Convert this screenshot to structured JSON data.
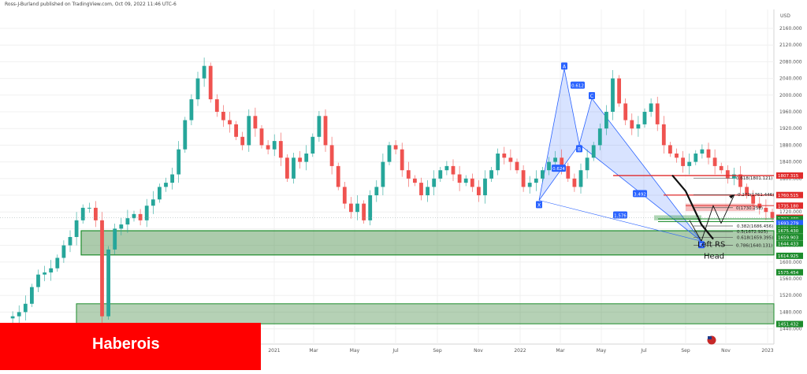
{
  "header": {
    "publisher_text": "Ross-J-Burland published on TradingView.com, Oct 09, 2022 11:46 UTC-6"
  },
  "watermark": {
    "label": "Haberois",
    "color": "#ff0000"
  },
  "chart_data": {
    "type": "candlestick",
    "currency": "USD",
    "y_range": [
      1425,
      2185
    ],
    "y_ticks": [
      2160,
      2120,
      2080,
      2040,
      2000,
      1960,
      1920,
      1880,
      1840,
      1800,
      1760,
      1720,
      1680,
      1640,
      1600,
      1560,
      1520,
      1480,
      1440
    ],
    "x_ticks": [
      "2021",
      "Mar",
      "May",
      "Jul",
      "Sep",
      "Nov",
      "2022",
      "Mar",
      "May",
      "Jul",
      "Sep",
      "Nov",
      "2023"
    ],
    "price_path": [
      [
        0,
        1465
      ],
      [
        1,
        1470
      ],
      [
        2,
        1480
      ],
      [
        3,
        1500
      ],
      [
        4,
        1540
      ],
      [
        5,
        1570
      ],
      [
        6,
        1575
      ],
      [
        7,
        1585
      ],
      [
        8,
        1610
      ],
      [
        9,
        1640
      ],
      [
        10,
        1660
      ],
      [
        11,
        1700
      ],
      [
        12,
        1730
      ],
      [
        13,
        1730
      ],
      [
        14,
        1700
      ],
      [
        15,
        1470
      ],
      [
        16,
        1630
      ],
      [
        17,
        1680
      ],
      [
        18,
        1690
      ],
      [
        19,
        1705
      ],
      [
        20,
        1715
      ],
      [
        21,
        1700
      ],
      [
        22,
        1735
      ],
      [
        23,
        1750
      ],
      [
        24,
        1780
      ],
      [
        25,
        1790
      ],
      [
        26,
        1810
      ],
      [
        27,
        1870
      ],
      [
        28,
        1940
      ],
      [
        29,
        1990
      ],
      [
        30,
        2040
      ],
      [
        31,
        2070
      ],
      [
        32,
        1990
      ],
      [
        33,
        1960
      ],
      [
        34,
        1940
      ],
      [
        35,
        1930
      ],
      [
        36,
        1900
      ],
      [
        37,
        1880
      ],
      [
        38,
        1950
      ],
      [
        39,
        1920
      ],
      [
        40,
        1880
      ],
      [
        41,
        1870
      ],
      [
        42,
        1890
      ],
      [
        43,
        1850
      ],
      [
        44,
        1800
      ],
      [
        45,
        1850
      ],
      [
        46,
        1840
      ],
      [
        47,
        1860
      ],
      [
        48,
        1900
      ],
      [
        49,
        1950
      ],
      [
        50,
        1880
      ],
      [
        51,
        1830
      ],
      [
        52,
        1780
      ],
      [
        53,
        1740
      ],
      [
        54,
        1720
      ],
      [
        55,
        1740
      ],
      [
        56,
        1700
      ],
      [
        57,
        1760
      ],
      [
        58,
        1780
      ],
      [
        59,
        1840
      ],
      [
        60,
        1880
      ],
      [
        61,
        1870
      ],
      [
        62,
        1820
      ],
      [
        63,
        1800
      ],
      [
        64,
        1790
      ],
      [
        65,
        1760
      ],
      [
        66,
        1780
      ],
      [
        67,
        1800
      ],
      [
        68,
        1820
      ],
      [
        69,
        1830
      ],
      [
        70,
        1810
      ],
      [
        71,
        1790
      ],
      [
        72,
        1800
      ],
      [
        73,
        1780
      ],
      [
        74,
        1760
      ],
      [
        75,
        1800
      ],
      [
        76,
        1820
      ],
      [
        77,
        1860
      ],
      [
        78,
        1850
      ],
      [
        79,
        1840
      ],
      [
        80,
        1820
      ],
      [
        81,
        1780
      ],
      [
        82,
        1790
      ],
      [
        83,
        1800
      ],
      [
        84,
        1820
      ],
      [
        85,
        1840
      ],
      [
        86,
        1850
      ],
      [
        87,
        1830
      ],
      [
        88,
        1800
      ],
      [
        89,
        1780
      ],
      [
        90,
        1820
      ],
      [
        91,
        1850
      ],
      [
        92,
        1880
      ],
      [
        93,
        1920
      ],
      [
        94,
        1960
      ],
      [
        95,
        2040
      ],
      [
        96,
        1980
      ],
      [
        97,
        1940
      ],
      [
        98,
        1920
      ],
      [
        99,
        1930
      ],
      [
        100,
        1960
      ],
      [
        101,
        1980
      ],
      [
        102,
        1930
      ],
      [
        103,
        1880
      ],
      [
        104,
        1860
      ],
      [
        105,
        1850
      ],
      [
        106,
        1830
      ],
      [
        107,
        1840
      ],
      [
        108,
        1860
      ],
      [
        109,
        1870
      ],
      [
        110,
        1850
      ],
      [
        111,
        1830
      ],
      [
        112,
        1820
      ],
      [
        113,
        1800
      ],
      [
        114,
        1810
      ],
      [
        115,
        1780
      ],
      [
        116,
        1760
      ],
      [
        117,
        1740
      ],
      [
        118,
        1730
      ],
      [
        119,
        1720
      ],
      [
        120,
        1705
      ]
    ],
    "levels": [
      {
        "price": 1807.315,
        "label": "1807.315",
        "color": "#e02b2b"
      },
      {
        "price": 1760.515,
        "label": "1760.515",
        "color": "#e02b2b"
      },
      {
        "price": 1735.18,
        "label": "1735.180",
        "color": "#e02b2b"
      },
      {
        "price": 1706.009,
        "label": "1706.009",
        "color": "#e02b2b"
      },
      {
        "price": 1705.96,
        "label": "1705.960",
        "color": "#e02b2b"
      },
      {
        "price": 1703.489,
        "label": "1703.489",
        "color": "#1d8c2c"
      },
      {
        "price": 1696.835,
        "label": "1696.835",
        "color": "#1d8c2c"
      },
      {
        "price": 1693.279,
        "label": "1693.279",
        "color": "#2962ff"
      },
      {
        "price": 1681.231,
        "label": "1681.231",
        "color": "#1d8c2c"
      },
      {
        "price": 1675.43,
        "label": "1675.430",
        "color": "#1d8c2c"
      },
      {
        "price": 1659.903,
        "label": "1659.903",
        "color": "#1d8c2c"
      },
      {
        "price": 1644.433,
        "label": "1644.433",
        "color": "#1d8c2c"
      },
      {
        "price": 1614.925,
        "label": "1614.925",
        "color": "#1d8c2c"
      },
      {
        "price": 1575.454,
        "label": "1575.454",
        "color": "#1d8c2c"
      },
      {
        "price": 1451.432,
        "label": "1451.432",
        "color": "#1d8c2c"
      }
    ],
    "fib_labels": [
      "0.618(1801.121)",
      "-0.272(1761.446)",
      "0(1730.258)",
      "0.382(1686.456)",
      "0.5(1672.925)",
      "0.618(1659.395)",
      "0.786(1640.131)"
    ],
    "harmonic_points": [
      "X",
      "A",
      "B",
      "C",
      "D"
    ],
    "ratios": [
      "0.612",
      "0.624",
      "3.492",
      "1.576"
    ],
    "annotations": [
      "Left RS",
      "Head"
    ]
  }
}
